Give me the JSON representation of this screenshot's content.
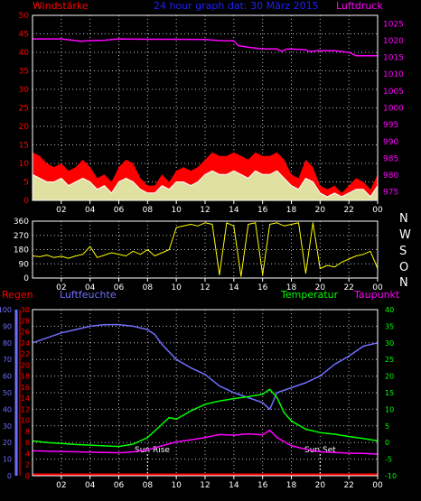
{
  "header": {
    "left_label": "Windstärke",
    "title": "24 hour graph dat: 30 März 2015",
    "right_label": "Luftdruck"
  },
  "colors": {
    "background": "#000000",
    "wind_gust": "#ff0000",
    "wind_avg": "#ffffff",
    "wind_fill": "#e0e0a0",
    "pressure": "#ff00ff",
    "direction": "#ffff00",
    "humidity": "#6f6fff",
    "temperature": "#00ff00",
    "dewpoint": "#ff00ff",
    "rain": "#ff0000",
    "grid": "#c0c0c0",
    "frame": "#ffffff"
  },
  "x_axis": {
    "ticks": [
      "02",
      "04",
      "06",
      "08",
      "10",
      "12",
      "14",
      "16",
      "18",
      "20",
      "22",
      "00"
    ],
    "range_hours": [
      0,
      24
    ]
  },
  "chart_data": [
    {
      "type": "area",
      "left_axis": {
        "label": "Windstärke",
        "ticks": [
          0,
          5,
          10,
          15,
          20,
          25,
          30,
          35,
          40,
          45,
          50
        ],
        "range": [
          0,
          50
        ]
      },
      "right_axis": {
        "label": "Luftdruck",
        "ticks": [
          975,
          980,
          985,
          990,
          995,
          1000,
          1005,
          1010,
          1015,
          1020,
          1025
        ],
        "range": [
          972.5,
          1027.5
        ]
      },
      "grid": true,
      "series": [
        {
          "key": "gust",
          "role": "wind_gust",
          "x": [
            0,
            0.5,
            1,
            1.5,
            2,
            2.5,
            3,
            3.5,
            4,
            4.5,
            5,
            5.5,
            6,
            6.5,
            7,
            7.5,
            8,
            8.5,
            9,
            9.5,
            10,
            10.5,
            11,
            11.5,
            12,
            12.5,
            13,
            13.5,
            14,
            14.5,
            15,
            15.5,
            16,
            16.5,
            17,
            17.5,
            18,
            18.5,
            19,
            19.5,
            20,
            20.5,
            21,
            21.5,
            22,
            22.5,
            23,
            23.5,
            24
          ],
          "values": [
            13,
            12,
            10,
            9,
            10,
            8,
            9,
            11,
            9,
            6,
            7,
            5,
            9,
            11,
            10,
            6,
            4,
            4,
            7,
            5,
            8,
            9,
            8,
            9,
            11,
            13,
            12,
            12,
            13,
            12,
            11,
            13,
            12,
            12,
            13,
            11,
            7,
            6,
            11,
            9,
            4,
            3,
            4,
            2,
            4,
            6,
            5,
            3,
            7
          ]
        },
        {
          "key": "average",
          "role": "wind_avg",
          "x": [
            0,
            0.5,
            1,
            1.5,
            2,
            2.5,
            3,
            3.5,
            4,
            4.5,
            5,
            5.5,
            6,
            6.5,
            7,
            7.5,
            8,
            8.5,
            9,
            9.5,
            10,
            10.5,
            11,
            11.5,
            12,
            12.5,
            13,
            13.5,
            14,
            14.5,
            15,
            15.5,
            16,
            16.5,
            17,
            17.5,
            18,
            18.5,
            19,
            19.5,
            20,
            20.5,
            21,
            21.5,
            22,
            22.5,
            23,
            23.5,
            24
          ],
          "values": [
            7,
            6,
            5,
            5,
            6,
            4,
            5,
            6,
            5,
            3,
            4,
            2,
            5,
            6,
            5,
            3,
            2,
            2,
            4,
            3,
            5,
            5,
            4,
            5,
            7,
            8,
            7,
            7,
            8,
            7,
            6,
            8,
            7,
            7,
            8,
            6,
            4,
            3,
            6,
            5,
            2,
            1,
            2,
            1,
            2,
            3,
            3,
            1,
            4
          ]
        },
        {
          "key": "pressure",
          "role": "pressure",
          "axis": "right",
          "x": [
            0,
            2,
            3,
            3.3,
            4,
            5,
            6,
            8,
            10,
            12,
            13,
            14,
            14.3,
            15,
            16,
            17,
            17.3,
            17.7,
            18,
            19,
            19.2,
            20,
            21,
            22,
            22.5,
            23,
            24
          ],
          "values": [
            1020.5,
            1020.5,
            1020.0,
            1019.8,
            1020.0,
            1020.1,
            1020.5,
            1020.4,
            1020.4,
            1020.3,
            1020.0,
            1019.9,
            1018.5,
            1018.0,
            1017.5,
            1017.5,
            1016.8,
            1017.5,
            1017.5,
            1017.3,
            1016.8,
            1017.0,
            1017.0,
            1016.5,
            1015.5,
            1015.5,
            1015.5
          ]
        }
      ]
    },
    {
      "type": "line",
      "left_axis": {
        "ticks": [
          0,
          90,
          180,
          270,
          360
        ],
        "range": [
          0,
          360
        ]
      },
      "right_axis": {
        "labels": [
          "N",
          "W",
          "S",
          "O",
          "N"
        ]
      },
      "grid": true,
      "series": [
        {
          "key": "direction",
          "role": "direction",
          "x": [
            0,
            0.5,
            1,
            1.5,
            2,
            2.5,
            3,
            3.5,
            4,
            4.5,
            5,
            5.5,
            6,
            6.5,
            7,
            7.5,
            8,
            8.5,
            9,
            9.5,
            10,
            10.5,
            11,
            11.5,
            12,
            12.5,
            13,
            13.5,
            14,
            14.5,
            15,
            15.5,
            16,
            16.5,
            17,
            17.5,
            18,
            18.5,
            19,
            19.5,
            20,
            20.5,
            21,
            21.5,
            22,
            22.5,
            23,
            23.5,
            24
          ],
          "values": [
            140,
            135,
            145,
            130,
            138,
            125,
            140,
            150,
            200,
            130,
            145,
            160,
            150,
            140,
            170,
            150,
            180,
            140,
            160,
            180,
            320,
            330,
            340,
            330,
            350,
            340,
            20,
            350,
            330,
            10,
            340,
            350,
            20,
            340,
            350,
            330,
            340,
            350,
            30,
            350,
            60,
            80,
            70,
            100,
            120,
            140,
            150,
            170,
            60
          ]
        }
      ]
    },
    {
      "type": "line",
      "left_labels": [
        "Regen",
        "Luftfeuchte"
      ],
      "right_labels": [
        "Temperatur",
        "Taupunkt"
      ],
      "axes": {
        "humidity": {
          "ticks": [
            0,
            10,
            20,
            30,
            40,
            50,
            60,
            70,
            80,
            90,
            100
          ],
          "range": [
            0,
            100
          ]
        },
        "rain": {
          "ticks": [
            0,
            2,
            4,
            6,
            8,
            10,
            12,
            14,
            16,
            18,
            20,
            22,
            24,
            26,
            28,
            30
          ],
          "range": [
            0,
            30
          ]
        },
        "temperature": {
          "ticks": [
            -10,
            -5,
            0,
            5,
            10,
            15,
            20,
            25,
            30,
            35,
            40
          ],
          "range": [
            -10,
            40
          ]
        }
      },
      "annotations": [
        {
          "text": "Sun Rise",
          "x": 8.0
        },
        {
          "text": "Sun Set",
          "x": 20.0
        }
      ],
      "grid": true,
      "series": [
        {
          "key": "humidity",
          "role": "humidity",
          "axis": "humidity",
          "x": [
            0,
            1,
            2,
            3,
            4,
            5,
            6,
            7,
            8,
            8.5,
            9,
            10,
            11,
            12,
            13,
            14,
            15,
            16,
            16.5,
            17,
            18,
            19,
            20,
            21,
            22,
            23,
            24
          ],
          "values": [
            80,
            83,
            86,
            88,
            90,
            91,
            91,
            90,
            88,
            85,
            79,
            70,
            65,
            61,
            54,
            50,
            47,
            44,
            40,
            50,
            53,
            56,
            60,
            67,
            72,
            78,
            80
          ]
        },
        {
          "key": "temperature",
          "role": "temperature",
          "axis": "temperature",
          "x": [
            0,
            1,
            2,
            3,
            4,
            5,
            6,
            7,
            8,
            9,
            9.5,
            10,
            11,
            12,
            13,
            14,
            15,
            16,
            16.5,
            17,
            17.5,
            18,
            19,
            20,
            21,
            22,
            23,
            24
          ],
          "values": [
            0.5,
            0,
            -0.3,
            -0.6,
            -0.8,
            -1,
            -1.2,
            -0.5,
            1.5,
            5.5,
            7.5,
            7,
            9.5,
            11.5,
            12.5,
            13.2,
            13.8,
            14.5,
            16,
            13.5,
            9,
            6.5,
            4,
            3,
            2.5,
            1.8,
            1.2,
            0.5
          ]
        },
        {
          "key": "dewpoint",
          "role": "dewpoint",
          "axis": "temperature",
          "x": [
            0,
            2,
            4,
            6,
            7,
            8,
            9,
            10,
            11,
            12,
            13,
            14,
            15,
            16,
            16.5,
            17,
            18,
            19,
            20,
            21,
            22,
            23,
            24
          ],
          "values": [
            -2.5,
            -2.7,
            -2.9,
            -3.1,
            -2.8,
            -2.2,
            -1,
            0.2,
            0.8,
            1.5,
            2.4,
            2.2,
            2.6,
            2.3,
            3.7,
            1.5,
            -1,
            -2,
            -2.8,
            -3,
            -3.2,
            -3.3,
            -3.5
          ]
        },
        {
          "key": "rain",
          "role": "rain",
          "axis": "rain",
          "x": [
            0,
            24
          ],
          "values": [
            0,
            0
          ]
        }
      ]
    }
  ]
}
